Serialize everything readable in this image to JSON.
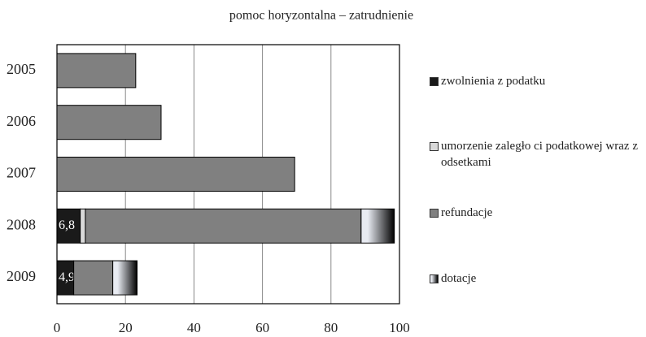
{
  "chart_data": {
    "type": "stacked-bar-horizontal",
    "title": "pomoc horyzontalna – zatrudnienie",
    "categories": [
      "2005",
      "2006",
      "2007",
      "2008",
      "2009"
    ],
    "series": [
      {
        "name": "zwolnienia z podatku",
        "color": "#1a1a1a",
        "values": [
          0,
          0,
          0,
          6.8,
          4.9
        ],
        "value_labels": [
          null,
          null,
          null,
          "6,8",
          "4,9"
        ]
      },
      {
        "name": "umorzenie zaległo ci podatkowej wraz z odsetkami",
        "color": "#d9d9d9",
        "values": [
          0,
          0,
          0,
          1.5,
          0
        ]
      },
      {
        "name": "refundacje",
        "color": "#808080",
        "values": [
          23,
          30.4,
          69.4,
          80.5,
          11.4
        ]
      },
      {
        "name": "dotacje",
        "color": "#e8ebf2",
        "values": [
          0,
          0,
          0,
          9.7,
          7.1
        ]
      }
    ],
    "xlim": [
      0,
      100
    ],
    "xticks": [
      0,
      20,
      40,
      60,
      80,
      100
    ],
    "grid": true
  }
}
